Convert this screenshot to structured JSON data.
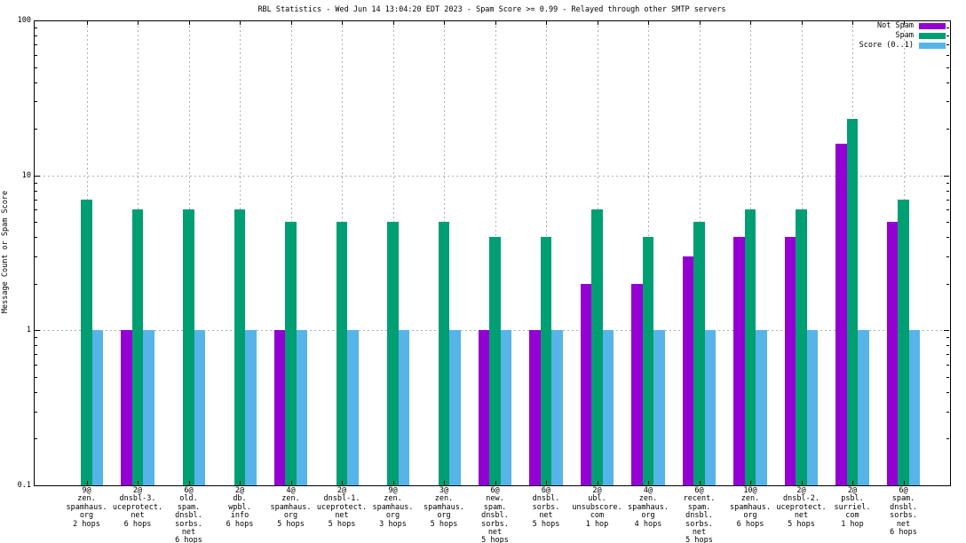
{
  "chart_data": {
    "type": "bar",
    "title": "RBL Statistics - Wed Jun 14 13:04:20 EDT 2023 - Spam Score >= 0.99 - Relayed through other SMTP servers",
    "ylabel": "Message Count or Spam Score",
    "xlabel": "",
    "y_scale": "log10",
    "ylim": [
      0.1,
      100
    ],
    "grid": true,
    "legend_position": "top-right-inside",
    "ytick_labels": [
      "100",
      "10",
      "1",
      "0.1"
    ],
    "ytick_values": [
      100,
      10,
      1,
      0.1
    ],
    "categories": [
      [
        "9@",
        "zen.",
        "spamhaus.",
        "org",
        "2 hops"
      ],
      [
        "2@",
        "dnsbl-3.",
        "uceprotect.",
        "net",
        "6 hops"
      ],
      [
        "6@",
        "old.",
        "spam.",
        "dnsbl.",
        "sorbs.",
        "net",
        "6 hops"
      ],
      [
        "2@",
        "db.",
        "wpbl.",
        "info",
        "6 hops"
      ],
      [
        "4@",
        "zen.",
        "spamhaus.",
        "org",
        "5 hops"
      ],
      [
        "2@",
        "dnsbl-1.",
        "uceprotect.",
        "net",
        "5 hops"
      ],
      [
        "9@",
        "zen.",
        "spamhaus.",
        "org",
        "3 hops"
      ],
      [
        "3@",
        "zen.",
        "spamhaus.",
        "org",
        "5 hops"
      ],
      [
        "6@",
        "new.",
        "spam.",
        "dnsbl.",
        "sorbs.",
        "net",
        "5 hops"
      ],
      [
        "6@",
        "dnsbl.",
        "sorbs.",
        "net",
        "5 hops"
      ],
      [
        "2@",
        "ubl.",
        "unsubscore.",
        "com",
        "1 hop"
      ],
      [
        "4@",
        "zen.",
        "spamhaus.",
        "org",
        "4 hops"
      ],
      [
        "6@",
        "recent.",
        "spam.",
        "dnsbl.",
        "sorbs.",
        "net",
        "5 hops"
      ],
      [
        "10@",
        "zen.",
        "spamhaus.",
        "org",
        "6 hops"
      ],
      [
        "2@",
        "dnsbl-2.",
        "uceprotect.",
        "net",
        "5 hops"
      ],
      [
        "2@",
        "psbl.",
        "surriel.",
        "com",
        "1 hop"
      ],
      [
        "6@",
        "spam.",
        "dnsbl.",
        "sorbs.",
        "net",
        "6 hops"
      ]
    ],
    "series": [
      {
        "name": "Not Spam",
        "color": "#9400d3",
        "values": [
          0,
          1,
          0,
          0,
          1,
          0,
          0,
          0,
          1,
          1,
          2,
          2,
          3,
          4,
          4,
          16,
          5
        ]
      },
      {
        "name": "Spam",
        "color": "#009e73",
        "values": [
          7,
          6,
          6,
          6,
          5,
          5,
          5,
          5,
          4,
          4,
          6,
          4,
          5,
          6,
          6,
          23,
          7
        ]
      },
      {
        "name": "Score (0..1)",
        "color": "#56b4e9",
        "values": [
          1,
          1,
          1,
          1,
          1,
          1,
          1,
          1,
          1,
          1,
          1,
          1,
          1,
          1,
          1,
          1,
          1
        ]
      }
    ],
    "colors": {
      "grid": "#b0b0b0",
      "border": "#000000",
      "background": "#ffffff"
    }
  }
}
